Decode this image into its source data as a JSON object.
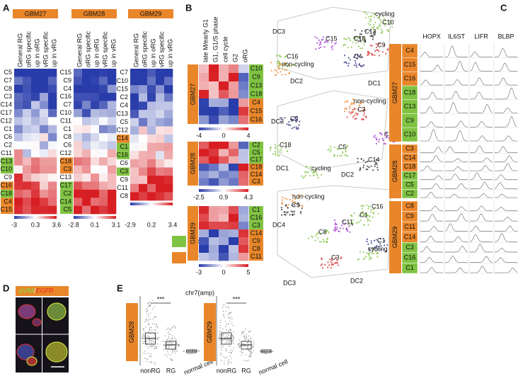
{
  "panel_labels": [
    "A",
    "B",
    "C",
    "D",
    "E"
  ],
  "legend": [
    {
      "label": "cycling",
      "color": "#80c342"
    },
    {
      "label": "non-cycling",
      "color": "#e9862a"
    }
  ],
  "panel_a": {
    "columns": [
      "General RG",
      "oRG specific",
      "up in oRG",
      "vRG specific",
      "up in vRG"
    ],
    "heatmaps": [
      {
        "sample": "GBM27",
        "colorbar": [
          "-3",
          "0.3",
          "3.6"
        ],
        "rows": [
          {
            "label": "C5"
          },
          {
            "label": "C7"
          },
          {
            "label": "C8"
          },
          {
            "label": "C3"
          },
          {
            "label": "C14"
          },
          {
            "label": "C17"
          },
          {
            "label": "C12"
          },
          {
            "label": "C1"
          },
          {
            "label": "C6"
          },
          {
            "label": "C2"
          },
          {
            "label": "C11"
          },
          {
            "label": "C13",
            "fill": "#80c342"
          },
          {
            "label": "C10",
            "fill": "#80c342"
          },
          {
            "label": "C9"
          },
          {
            "label": "C16",
            "fill": "#e9862a"
          },
          {
            "label": "C18",
            "fill": "#80c342"
          },
          {
            "label": "C4",
            "fill": "#e9862a"
          },
          {
            "label": "C15",
            "fill": "#e9862a"
          }
        ]
      },
      {
        "sample": "GBM28",
        "colorbar": [
          "-2.8",
          "0.1",
          "3.1"
        ],
        "rows": [
          {
            "label": "C15"
          },
          {
            "label": "C9"
          },
          {
            "label": "C4"
          },
          {
            "label": "C16"
          },
          {
            "label": "C7"
          },
          {
            "label": "C10"
          },
          {
            "label": "C11"
          },
          {
            "label": "C1"
          },
          {
            "label": "C8"
          },
          {
            "label": "C6"
          },
          {
            "label": "C12"
          },
          {
            "label": "C18",
            "fill": "#e9862a"
          },
          {
            "label": "C3",
            "fill": "#e9862a"
          },
          {
            "label": "C13"
          },
          {
            "label": "C17",
            "fill": "#80c342"
          },
          {
            "label": "C2",
            "fill": "#80c342"
          },
          {
            "label": "C14",
            "fill": "#80c342"
          },
          {
            "label": "C5",
            "fill": "#80c342"
          }
        ]
      },
      {
        "sample": "GBM29",
        "colorbar": [
          "-2.9",
          "0.2",
          "3.4"
        ],
        "rows": [
          {
            "label": "C7"
          },
          {
            "label": "C10"
          },
          {
            "label": "C15"
          },
          {
            "label": "C2"
          },
          {
            "label": "C4"
          },
          {
            "label": "C13"
          },
          {
            "label": "C5"
          },
          {
            "label": "C12"
          },
          {
            "label": "C14",
            "fill": "#e9862a"
          },
          {
            "label": "C1",
            "fill": "#80c342"
          },
          {
            "label": "C16",
            "fill": "#80c342"
          },
          {
            "label": "C6"
          },
          {
            "label": "C3",
            "fill": "#80c342"
          },
          {
            "label": "C9"
          },
          {
            "label": "C11"
          },
          {
            "label": "C8"
          }
        ]
      }
    ]
  },
  "panel_b": {
    "columns": [
      "late M/early G1",
      "G1, G1/S phase",
      "cell cycle",
      "G2",
      "oRG"
    ],
    "heatmaps": [
      {
        "sample": "GBM27",
        "colorbar": [
          "-4",
          "0",
          "4"
        ],
        "rows": [
          {
            "label": "C10",
            "fill": "#80c342"
          },
          {
            "label": "C9",
            "fill": "#80c342"
          },
          {
            "label": "C13",
            "fill": "#80c342"
          },
          {
            "label": "C18",
            "fill": "#80c342"
          },
          {
            "label": "C4",
            "fill": "#e9862a"
          },
          {
            "label": "C15",
            "fill": "#e9862a"
          },
          {
            "label": "C16",
            "fill": "#e9862a"
          }
        ]
      },
      {
        "sample": "GBM28",
        "colorbar": [
          "-2.5",
          "0.9",
          "4.3"
        ],
        "rows": [
          {
            "label": "C2",
            "fill": "#80c342"
          },
          {
            "label": "C5",
            "fill": "#80c342"
          },
          {
            "label": "C17",
            "fill": "#80c342"
          },
          {
            "label": "C18",
            "fill": "#e9862a"
          },
          {
            "label": "C14",
            "fill": "#e9862a"
          },
          {
            "label": "C3",
            "fill": "#e9862a"
          }
        ]
      },
      {
        "sample": "GBM29",
        "colorbar": [
          "-3",
          "0",
          "5"
        ],
        "rows": [
          {
            "label": "C1",
            "fill": "#80c342"
          },
          {
            "label": "C16",
            "fill": "#80c342"
          },
          {
            "label": "C3",
            "fill": "#80c342"
          },
          {
            "label": "C14",
            "fill": "#e9862a"
          },
          {
            "label": "C9",
            "fill": "#e9862a"
          },
          {
            "label": "C8",
            "fill": "#e9862a"
          },
          {
            "label": "C11",
            "fill": "#e9862a"
          }
        ]
      }
    ],
    "embeddings": [
      {
        "axes": [
          "DC3",
          "DC2",
          "DC1"
        ],
        "labels": [
          {
            "text": "cycling",
            "color": "#80c342"
          },
          {
            "text": "C10",
            "color": "#80c342"
          },
          {
            "text": "C13",
            "color": "#222222"
          },
          {
            "text": "C18",
            "color": "#80c342"
          },
          {
            "text": "C15",
            "color": "#9b2fc9"
          },
          {
            "text": "C9",
            "color": "#d62020"
          },
          {
            "text": "C4",
            "color": "#22237a"
          },
          {
            "text": "C16",
            "color": "#80c342"
          },
          {
            "text": "non-cycling",
            "color": "#e9862a"
          }
        ]
      },
      {
        "axes": [
          "DC3",
          "DC1",
          "DC2"
        ],
        "labels": [
          {
            "text": "non-cycling",
            "color": "#e9862a"
          },
          {
            "text": "C3",
            "color": "#d62020"
          },
          {
            "text": "C2",
            "color": "#22237a"
          },
          {
            "text": "C17",
            "color": "#9b2fc9"
          },
          {
            "text": "C18",
            "color": "#80c342"
          },
          {
            "text": "C5",
            "color": "#80c342"
          },
          {
            "text": "C14",
            "color": "#222222"
          },
          {
            "text": "cycling",
            "color": "#80c342"
          }
        ]
      },
      {
        "axes": [
          "DC4",
          "DC3",
          "DC2"
        ],
        "labels": [
          {
            "text": "non-cycling",
            "color": "#e9862a"
          },
          {
            "text": "C9",
            "color": "#222222"
          },
          {
            "text": "C16",
            "color": "#80c342"
          },
          {
            "text": "C1",
            "color": "#80c342"
          },
          {
            "text": "C11",
            "color": "#9b2fc9"
          },
          {
            "text": "C8",
            "color": "#80c342"
          },
          {
            "text": "C1",
            "color": "#22237a"
          },
          {
            "text": "cycling",
            "color": "#80c342"
          },
          {
            "text": "C3",
            "color": "#d62020"
          }
        ]
      }
    ]
  },
  "panel_c": {
    "genes": [
      "HOPX",
      "IL6ST",
      "LIFR",
      "BLBP"
    ],
    "groups": [
      {
        "sample": "GBM27",
        "rows": [
          {
            "label": "C4",
            "fill": "#e9862a"
          },
          {
            "label": "C15",
            "fill": "#e9862a"
          },
          {
            "label": "C16",
            "fill": "#e9862a"
          },
          {
            "label": "C18",
            "fill": "#80c342"
          },
          {
            "label": "C13",
            "fill": "#80c342"
          },
          {
            "label": "C9",
            "fill": "#80c342"
          },
          {
            "label": "C10",
            "fill": "#80c342"
          }
        ]
      },
      {
        "sample": "GBM28",
        "rows": [
          {
            "label": "C3",
            "fill": "#e9862a"
          },
          {
            "label": "C14",
            "fill": "#e9862a"
          },
          {
            "label": "C18",
            "fill": "#e9862a"
          },
          {
            "label": "C17",
            "fill": "#80c342"
          },
          {
            "label": "C5",
            "fill": "#80c342"
          },
          {
            "label": "C2",
            "fill": "#80c342"
          }
        ]
      },
      {
        "sample": "GBM29",
        "rows": [
          {
            "label": "C8",
            "fill": "#e9862a"
          },
          {
            "label": "C9",
            "fill": "#e9862a"
          },
          {
            "label": "C11",
            "fill": "#e9862a"
          },
          {
            "label": "C14",
            "fill": "#e9862a"
          },
          {
            "label": "C3",
            "fill": "#80c342"
          },
          {
            "label": "C16",
            "fill": "#80c342"
          },
          {
            "label": "C1",
            "fill": "#80c342"
          }
        ]
      }
    ]
  },
  "panel_d": {
    "stain_1": "pVIM",
    "separator": "/",
    "stain_2": "EGFR"
  },
  "panel_e": {
    "title": "chr7(amp)",
    "categories": [
      "nonRG",
      "RG",
      "normal cell"
    ],
    "plots": [
      {
        "sample": "GBM28",
        "significance": "***"
      },
      {
        "sample": "GBM29",
        "significance": "***"
      }
    ]
  }
}
